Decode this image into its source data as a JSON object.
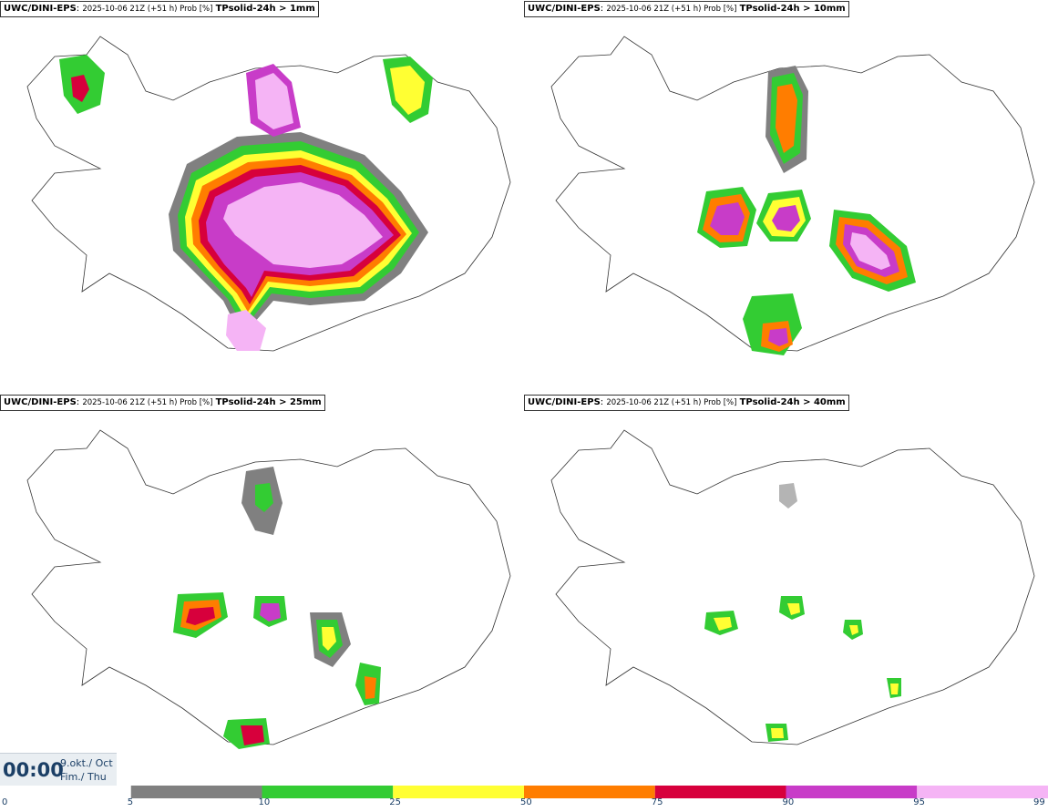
{
  "panels": [
    {
      "model": "UWC/DINI-EPS",
      "meta": "2025-10-06 21Z (+51 h) Prob [%]",
      "param": "TPsolid-24h > 1mm"
    },
    {
      "model": "UWC/DINI-EPS",
      "meta": "2025-10-06 21Z (+51 h) Prob [%]",
      "param": "TPsolid-24h > 10mm"
    },
    {
      "model": "UWC/DINI-EPS",
      "meta": "2025-10-06 21Z (+51 h) Prob [%]",
      "param": "TPsolid-24h > 25mm"
    },
    {
      "model": "UWC/DINI-EPS",
      "meta": "2025-10-06 21Z (+51 h) Prob [%]",
      "param": "TPsolid-24h > 40mm"
    }
  ],
  "valid_time": {
    "time": "00:00",
    "date_line1": "9.okt./ Oct",
    "date_line2": "Fim./ Thu"
  },
  "legend": {
    "ticks": [
      "0",
      "5",
      "10",
      "25",
      "50",
      "75",
      "90",
      "95",
      "99"
    ],
    "colors": [
      "#ffffff",
      "#b4b4b4",
      "#808080",
      "#33cc33",
      "#ffff33",
      "#ff7d00",
      "#d7003c",
      "#c83cc8",
      "#f5b4f5"
    ]
  },
  "colors": {
    "p5": "#b4b4b4",
    "p10": "#808080",
    "p25": "#33cc33",
    "p50": "#ffff33",
    "p75": "#ff7d00",
    "p90": "#d7003c",
    "p95": "#c83cc8",
    "p99": "#f5b4f5"
  }
}
